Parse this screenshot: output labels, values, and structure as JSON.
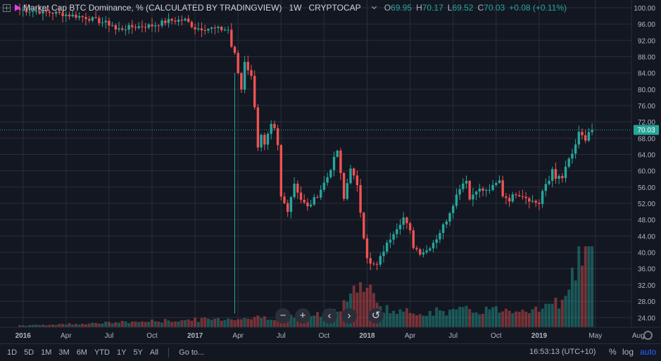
{
  "legend": {
    "symbol": "Market Cap BTC Dominance, % (CALCULATED BY TRADINGVIEW)",
    "interval": "1W",
    "exchange": "CRYPTOCAP",
    "open_label": "O",
    "open": "69.95",
    "high_label": "H",
    "high": "70.17",
    "low_label": "L",
    "low": "69.52",
    "close_label": "C",
    "close": "70.03",
    "change": "+0.08 (+0.11%)"
  },
  "nav": {
    "zoom_out": "−",
    "zoom_in": "+",
    "scroll_left": "‹",
    "scroll_right": "›",
    "reset": "↺"
  },
  "bottom_bar": {
    "ranges": [
      "1D",
      "5D",
      "1M",
      "3M",
      "6M",
      "YTD",
      "1Y",
      "5Y",
      "All"
    ],
    "goto": "Go to...",
    "clock": "16:53:13 (UTC+10)",
    "percent": "%",
    "log": "log",
    "auto": "auto"
  },
  "colors": {
    "up": "#26a69a",
    "down": "#ef5350",
    "background": "#131722",
    "grid": "#2a2e39",
    "price_tag": "#26a69a"
  },
  "chart_data": {
    "type": "candlestick",
    "symbol": "Market Cap BTC Dominance, % (CALCULATED BY TRADINGVIEW)",
    "interval": "1W",
    "y_ticks": [
      24,
      28,
      32,
      36,
      40,
      44,
      48,
      52,
      56,
      60,
      64,
      68,
      72,
      76,
      80,
      84,
      88,
      92,
      96,
      100
    ],
    "y_tick_labels": [
      "24.00",
      "28.00",
      "32.00",
      "36.00",
      "40.00",
      "44.00",
      "48.00",
      "52.00",
      "56.00",
      "60.00",
      "64.00",
      "68.00",
      "72.00",
      "76.00",
      "80.00",
      "84.00",
      "88.00",
      "92.00",
      "96.00",
      "100.00"
    ],
    "ylim": [
      21.8,
      101.2
    ],
    "x_ticks": [
      {
        "label": "2016",
        "week": 1
      },
      {
        "label": "Apr",
        "week": 14
      },
      {
        "label": "Jul",
        "week": 27
      },
      {
        "label": "Oct",
        "week": 40
      },
      {
        "label": "2017",
        "week": 53
      },
      {
        "label": "Apr",
        "week": 66
      },
      {
        "label": "Jul",
        "week": 79
      },
      {
        "label": "Oct",
        "week": 92
      },
      {
        "label": "2018",
        "week": 105
      },
      {
        "label": "Apr",
        "week": 118
      },
      {
        "label": "Jul",
        "week": 131
      },
      {
        "label": "Oct",
        "week": 144
      },
      {
        "label": "2019",
        "week": 157
      },
      {
        "label": "May",
        "week": 174
      },
      {
        "label": "Aug",
        "week": 187
      }
    ],
    "last_price": 70.03,
    "close_anchors": [
      [
        0,
        99.5
      ],
      [
        10,
        98.8
      ],
      [
        20,
        97.6
      ],
      [
        28,
        95.8
      ],
      [
        29,
        94.6
      ],
      [
        34,
        95.3
      ],
      [
        40,
        95.6
      ],
      [
        45,
        96.8
      ],
      [
        50,
        97.0
      ],
      [
        53,
        95.0
      ],
      [
        58,
        94.9
      ],
      [
        63,
        94.6
      ],
      [
        64,
        90.5
      ],
      [
        65,
        88.5
      ],
      [
        66,
        84.0
      ],
      [
        67,
        80.0
      ],
      [
        68,
        87.0
      ],
      [
        70,
        83.0
      ],
      [
        71,
        76.0
      ],
      [
        72,
        66.0
      ],
      [
        73,
        68.5
      ],
      [
        74,
        66.0
      ],
      [
        76,
        71.0
      ],
      [
        77,
        70.0
      ],
      [
        78,
        66.0
      ],
      [
        79,
        53.5
      ],
      [
        81,
        50.5
      ],
      [
        83,
        57.0
      ],
      [
        85,
        53.0
      ],
      [
        87,
        51.0
      ],
      [
        90,
        54.0
      ],
      [
        93,
        58.5
      ],
      [
        96,
        65.0
      ],
      [
        98,
        53.0
      ],
      [
        100,
        61.0
      ],
      [
        102,
        56.0
      ],
      [
        103,
        50.0
      ],
      [
        104,
        44.0
      ],
      [
        105,
        39.0
      ],
      [
        106,
        37.0
      ],
      [
        108,
        36.8
      ],
      [
        110,
        40.5
      ],
      [
        113,
        45.0
      ],
      [
        116,
        48.5
      ],
      [
        118,
        45.0
      ],
      [
        119,
        41.5
      ],
      [
        121,
        40.0
      ],
      [
        123,
        40.5
      ],
      [
        126,
        43.5
      ],
      [
        129,
        48.0
      ],
      [
        131,
        52.0
      ],
      [
        133,
        56.0
      ],
      [
        135,
        58.0
      ],
      [
        136,
        53.0
      ],
      [
        138,
        55.5
      ],
      [
        141,
        55.0
      ],
      [
        143,
        56.0
      ],
      [
        145,
        57.5
      ],
      [
        146,
        54.0
      ],
      [
        148,
        53.0
      ],
      [
        150,
        54.5
      ],
      [
        152,
        54.0
      ],
      [
        155,
        52.5
      ],
      [
        157,
        52.0
      ],
      [
        158,
        55.0
      ],
      [
        160,
        57.5
      ],
      [
        161,
        60.5
      ],
      [
        162,
        58.5
      ],
      [
        164,
        58.0
      ],
      [
        165,
        61.0
      ],
      [
        167,
        64.0
      ],
      [
        169,
        69.0
      ],
      [
        171,
        67.5
      ],
      [
        172,
        69.5
      ],
      [
        173,
        70.03
      ]
    ],
    "volume_series": "weekly, relative"
  }
}
